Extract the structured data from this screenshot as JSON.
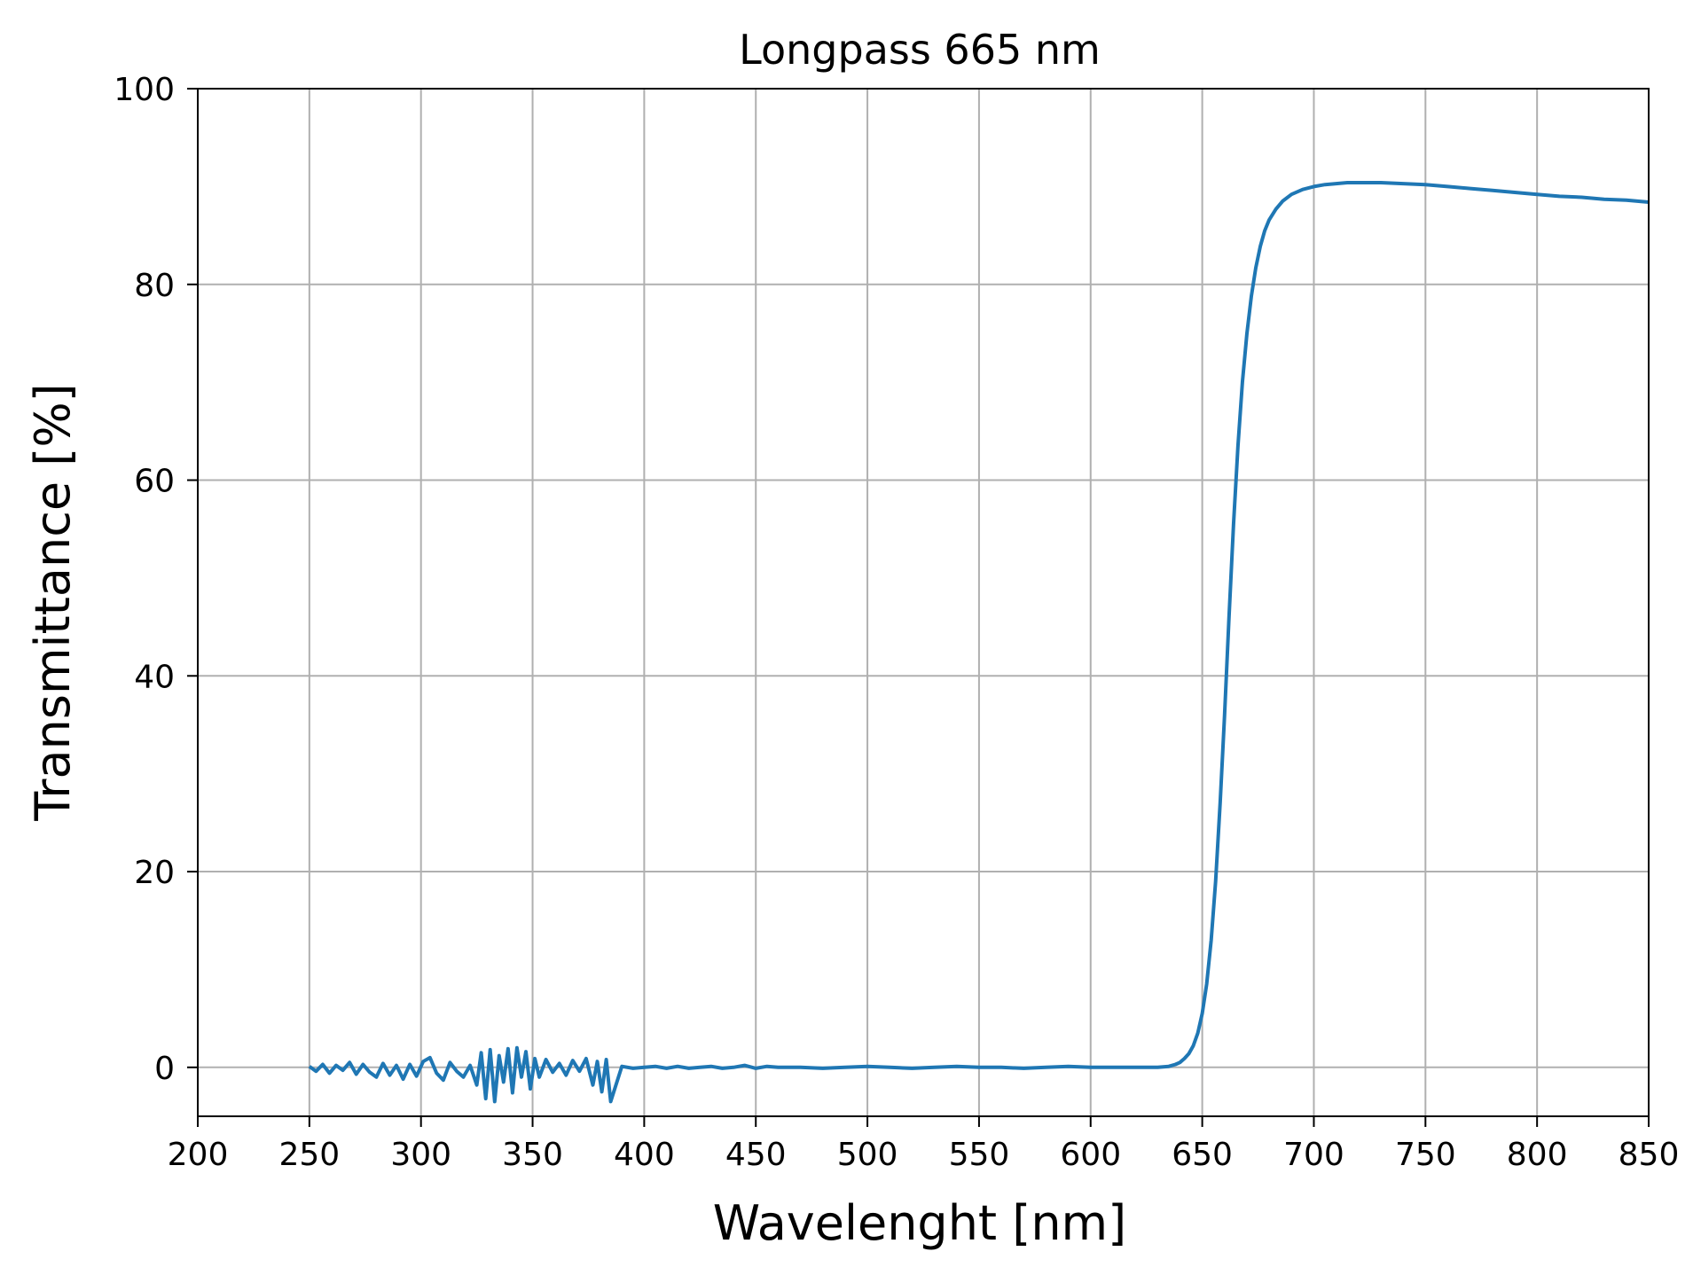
{
  "chart_data": {
    "type": "line",
    "title": "Longpass 665 nm",
    "xlabel": "Wavelenght [nm]",
    "ylabel": "Transmittance [%]",
    "xlim": [
      200,
      850
    ],
    "ylim": [
      -5,
      100
    ],
    "xticks": [
      200,
      250,
      300,
      350,
      400,
      450,
      500,
      550,
      600,
      650,
      700,
      750,
      800,
      850
    ],
    "yticks": [
      0,
      20,
      40,
      60,
      80,
      100
    ],
    "grid": true,
    "line_color": "#1f77b4",
    "grid_color": "#b0b0b0",
    "series": [
      {
        "x": [
          250,
          253,
          256,
          259,
          262,
          265,
          268,
          271,
          274,
          277,
          280,
          283,
          286,
          289,
          292,
          295,
          298,
          301,
          304,
          307,
          310,
          313,
          316,
          319,
          322,
          325,
          327,
          329,
          331,
          333,
          335,
          337,
          339,
          341,
          343,
          345,
          347,
          349,
          351,
          353,
          356,
          359,
          362,
          365,
          368,
          371,
          374,
          377,
          379,
          381,
          383,
          385,
          390,
          395,
          400,
          405,
          410,
          415,
          420,
          425,
          430,
          435,
          440,
          445,
          450,
          455,
          460,
          470,
          480,
          490,
          500,
          510,
          520,
          530,
          540,
          550,
          560,
          570,
          580,
          590,
          600,
          610,
          620,
          630,
          635,
          638,
          640,
          642,
          644,
          646,
          648,
          650,
          652,
          654,
          656,
          658,
          660,
          662,
          664,
          666,
          668,
          670,
          672,
          674,
          676,
          678,
          680,
          683,
          686,
          690,
          695,
          700,
          705,
          710,
          715,
          720,
          725,
          730,
          740,
          750,
          760,
          770,
          780,
          790,
          800,
          810,
          820,
          830,
          840,
          850
        ],
        "y": [
          0.1,
          -0.4,
          0.3,
          -0.6,
          0.2,
          -0.3,
          0.5,
          -0.7,
          0.3,
          -0.5,
          -1.0,
          0.4,
          -0.8,
          0.2,
          -1.2,
          0.3,
          -0.9,
          0.6,
          1.0,
          -0.6,
          -1.3,
          0.5,
          -0.4,
          -1.0,
          0.2,
          -1.8,
          1.5,
          -3.2,
          1.8,
          -3.5,
          1.2,
          -1.5,
          1.9,
          -2.6,
          2.0,
          -1.0,
          1.6,
          -2.2,
          0.9,
          -1.0,
          0.8,
          -0.5,
          0.4,
          -0.8,
          0.7,
          -0.4,
          0.9,
          -1.8,
          0.6,
          -2.5,
          0.8,
          -3.5,
          0.1,
          -0.1,
          0.0,
          0.1,
          -0.1,
          0.1,
          -0.1,
          0.0,
          0.1,
          -0.1,
          0.0,
          0.2,
          -0.1,
          0.1,
          0.0,
          0.0,
          -0.1,
          0.0,
          0.1,
          0.0,
          -0.1,
          0.0,
          0.1,
          0.0,
          0.0,
          -0.1,
          0.0,
          0.1,
          0.0,
          0.0,
          0.0,
          0.0,
          0.1,
          0.3,
          0.5,
          0.9,
          1.4,
          2.2,
          3.5,
          5.5,
          8.5,
          13.0,
          19.0,
          27.0,
          36.0,
          46.0,
          55.5,
          63.5,
          70.0,
          75.0,
          78.8,
          81.7,
          83.9,
          85.5,
          86.6,
          87.7,
          88.5,
          89.2,
          89.7,
          90.0,
          90.2,
          90.3,
          90.4,
          90.4,
          90.4,
          90.4,
          90.3,
          90.2,
          90.0,
          89.8,
          89.6,
          89.4,
          89.2,
          89.0,
          88.9,
          88.7,
          88.6,
          88.4
        ]
      }
    ]
  }
}
